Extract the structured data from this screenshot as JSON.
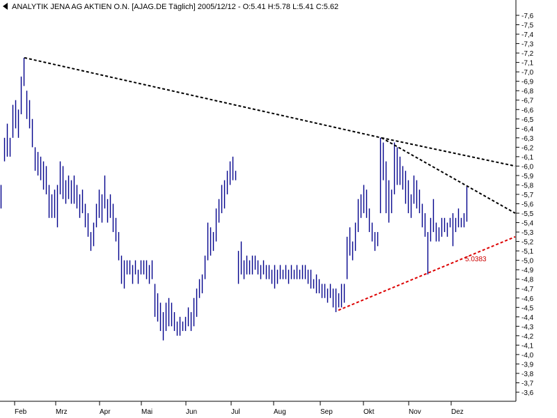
{
  "chart_data": {
    "type": "ohlc",
    "title": "ANALYTIK JENA AG AKTIEN O.N. [AJAG.DE  Täglich] 2005/12/12 - O:5.41 H:5.78 L:5.41 C:5.62",
    "xlabel": "",
    "ylabel": "",
    "ylim": [
      3.6,
      7.6
    ],
    "y_ticks": [
      "7,6",
      "7,5",
      "7,4",
      "7,3",
      "7,2",
      "7,1",
      "7,0",
      "6,9",
      "6,8",
      "6,7",
      "6,6",
      "6,5",
      "6,4",
      "6,3",
      "6,2",
      "6,1",
      "6,0",
      "5,9",
      "5,8",
      "5,7",
      "5,6",
      "5,5",
      "5,4",
      "5,3",
      "5,2",
      "5,1",
      "5,0",
      "4,9",
      "4,8",
      "4,7",
      "4,6",
      "4,5",
      "4,4",
      "4,3",
      "4,2",
      "4,1",
      "4,0",
      "3,9",
      "3,8",
      "3,7",
      "3,6"
    ],
    "month_labels": [
      "Feb",
      "Mrz",
      "Apr",
      "Mai",
      "Jun",
      "Jul",
      "Aug",
      "Sep",
      "Okt",
      "Nov",
      "Dez"
    ],
    "grid": false,
    "colors": {
      "bars": "#00008b",
      "trend": "#000000",
      "support": "#dd0000",
      "annotation": "#cc0000"
    },
    "bars": [
      {
        "x": 1,
        "h": 5.8,
        "l": 5.55
      },
      {
        "x": 6,
        "h": 6.3,
        "l": 6.05
      },
      {
        "x": 10,
        "h": 6.45,
        "l": 6.1
      },
      {
        "x": 14,
        "h": 6.3,
        "l": 6.1
      },
      {
        "x": 18,
        "h": 6.65,
        "l": 6.3
      },
      {
        "x": 22,
        "h": 6.7,
        "l": 6.4
      },
      {
        "x": 26,
        "h": 6.6,
        "l": 6.3
      },
      {
        "x": 30,
        "h": 6.95,
        "l": 6.55
      },
      {
        "x": 34,
        "h": 7.15,
        "l": 6.85
      },
      {
        "x": 38,
        "h": 6.8,
        "l": 6.5
      },
      {
        "x": 42,
        "h": 6.7,
        "l": 6.4
      },
      {
        "x": 46,
        "h": 6.5,
        "l": 6.2
      },
      {
        "x": 50,
        "h": 6.2,
        "l": 5.95
      },
      {
        "x": 54,
        "h": 6.15,
        "l": 5.9
      },
      {
        "x": 58,
        "h": 6.1,
        "l": 5.85
      },
      {
        "x": 62,
        "h": 6.05,
        "l": 5.75
      },
      {
        "x": 66,
        "h": 6.0,
        "l": 5.7
      },
      {
        "x": 70,
        "h": 5.8,
        "l": 5.45
      },
      {
        "x": 74,
        "h": 5.7,
        "l": 5.45
      },
      {
        "x": 78,
        "h": 5.75,
        "l": 5.45
      },
      {
        "x": 82,
        "h": 5.8,
        "l": 5.35
      },
      {
        "x": 86,
        "h": 6.05,
        "l": 5.7
      },
      {
        "x": 90,
        "h": 6.0,
        "l": 5.65
      },
      {
        "x": 94,
        "h": 5.85,
        "l": 5.6
      },
      {
        "x": 98,
        "h": 5.9,
        "l": 5.65
      },
      {
        "x": 102,
        "h": 5.85,
        "l": 5.6
      },
      {
        "x": 106,
        "h": 5.9,
        "l": 5.6
      },
      {
        "x": 110,
        "h": 5.8,
        "l": 5.55
      },
      {
        "x": 114,
        "h": 5.7,
        "l": 5.45
      },
      {
        "x": 118,
        "h": 5.75,
        "l": 5.5
      },
      {
        "x": 122,
        "h": 5.6,
        "l": 5.35
      },
      {
        "x": 126,
        "h": 5.5,
        "l": 5.25
      },
      {
        "x": 130,
        "h": 5.3,
        "l": 5.1
      },
      {
        "x": 134,
        "h": 5.4,
        "l": 5.15
      },
      {
        "x": 138,
        "h": 5.6,
        "l": 5.35
      },
      {
        "x": 142,
        "h": 5.75,
        "l": 5.45
      },
      {
        "x": 146,
        "h": 5.7,
        "l": 5.4
      },
      {
        "x": 150,
        "h": 5.9,
        "l": 5.55
      },
      {
        "x": 154,
        "h": 5.65,
        "l": 5.4
      },
      {
        "x": 158,
        "h": 5.7,
        "l": 5.45
      },
      {
        "x": 162,
        "h": 5.6,
        "l": 5.3
      },
      {
        "x": 166,
        "h": 5.45,
        "l": 5.2
      },
      {
        "x": 170,
        "h": 5.3,
        "l": 5.0
      },
      {
        "x": 174,
        "h": 5.05,
        "l": 4.75
      },
      {
        "x": 178,
        "h": 5.0,
        "l": 4.7
      },
      {
        "x": 182,
        "h": 5.0,
        "l": 4.85
      },
      {
        "x": 186,
        "h": 5.0,
        "l": 4.85
      },
      {
        "x": 190,
        "h": 4.95,
        "l": 4.75
      },
      {
        "x": 194,
        "h": 5.0,
        "l": 4.85
      },
      {
        "x": 198,
        "h": 4.9,
        "l": 4.75
      },
      {
        "x": 202,
        "h": 5.0,
        "l": 4.85
      },
      {
        "x": 206,
        "h": 5.0,
        "l": 4.85
      },
      {
        "x": 210,
        "h": 5.0,
        "l": 4.8
      },
      {
        "x": 214,
        "h": 4.95,
        "l": 4.75
      },
      {
        "x": 218,
        "h": 5.0,
        "l": 4.8
      },
      {
        "x": 222,
        "h": 4.75,
        "l": 4.4
      },
      {
        "x": 226,
        "h": 4.65,
        "l": 4.35
      },
      {
        "x": 230,
        "h": 4.55,
        "l": 4.25
      },
      {
        "x": 234,
        "h": 4.45,
        "l": 4.15
      },
      {
        "x": 238,
        "h": 4.55,
        "l": 4.25
      },
      {
        "x": 242,
        "h": 4.6,
        "l": 4.3
      },
      {
        "x": 246,
        "h": 4.55,
        "l": 4.3
      },
      {
        "x": 250,
        "h": 4.45,
        "l": 4.25
      },
      {
        "x": 254,
        "h": 4.35,
        "l": 4.2
      },
      {
        "x": 258,
        "h": 4.4,
        "l": 4.2
      },
      {
        "x": 262,
        "h": 4.35,
        "l": 4.25
      },
      {
        "x": 266,
        "h": 4.4,
        "l": 4.25
      },
      {
        "x": 270,
        "h": 4.5,
        "l": 4.3
      },
      {
        "x": 274,
        "h": 4.45,
        "l": 4.25
      },
      {
        "x": 278,
        "h": 4.6,
        "l": 4.3
      },
      {
        "x": 282,
        "h": 4.7,
        "l": 4.4
      },
      {
        "x": 286,
        "h": 4.8,
        "l": 4.6
      },
      {
        "x": 290,
        "h": 4.85,
        "l": 4.65
      },
      {
        "x": 294,
        "h": 5.05,
        "l": 4.8
      },
      {
        "x": 298,
        "h": 5.4,
        "l": 5.0
      },
      {
        "x": 302,
        "h": 5.35,
        "l": 5.05
      },
      {
        "x": 306,
        "h": 5.3,
        "l": 5.1
      },
      {
        "x": 310,
        "h": 5.55,
        "l": 5.2
      },
      {
        "x": 314,
        "h": 5.65,
        "l": 5.4
      },
      {
        "x": 318,
        "h": 5.8,
        "l": 5.5
      },
      {
        "x": 322,
        "h": 5.85,
        "l": 5.55
      },
      {
        "x": 326,
        "h": 5.95,
        "l": 5.7
      },
      {
        "x": 330,
        "h": 6.05,
        "l": 5.8
      },
      {
        "x": 334,
        "h": 6.1,
        "l": 5.85
      },
      {
        "x": 338,
        "h": 5.95,
        "l": 5.85
      },
      {
        "x": 342,
        "h": 5.1,
        "l": 4.75
      },
      {
        "x": 346,
        "h": 5.2,
        "l": 4.85
      },
      {
        "x": 350,
        "h": 5.0,
        "l": 4.8
      },
      {
        "x": 354,
        "h": 5.05,
        "l": 4.85
      },
      {
        "x": 358,
        "h": 5.0,
        "l": 4.85
      },
      {
        "x": 362,
        "h": 5.05,
        "l": 4.85
      },
      {
        "x": 366,
        "h": 5.05,
        "l": 4.9
      },
      {
        "x": 370,
        "h": 5.0,
        "l": 4.85
      },
      {
        "x": 374,
        "h": 4.95,
        "l": 4.8
      },
      {
        "x": 378,
        "h": 5.0,
        "l": 4.85
      },
      {
        "x": 382,
        "h": 4.95,
        "l": 4.8
      },
      {
        "x": 386,
        "h": 4.95,
        "l": 4.8
      },
      {
        "x": 390,
        "h": 4.9,
        "l": 4.75
      },
      {
        "x": 394,
        "h": 4.95,
        "l": 4.7
      },
      {
        "x": 398,
        "h": 4.9,
        "l": 4.75
      },
      {
        "x": 402,
        "h": 4.95,
        "l": 4.8
      },
      {
        "x": 406,
        "h": 4.9,
        "l": 4.8
      },
      {
        "x": 410,
        "h": 4.95,
        "l": 4.8
      },
      {
        "x": 414,
        "h": 4.9,
        "l": 4.75
      },
      {
        "x": 418,
        "h": 4.95,
        "l": 4.8
      },
      {
        "x": 422,
        "h": 4.9,
        "l": 4.8
      },
      {
        "x": 426,
        "h": 4.95,
        "l": 4.8
      },
      {
        "x": 430,
        "h": 4.9,
        "l": 4.8
      },
      {
        "x": 434,
        "h": 4.95,
        "l": 4.8
      },
      {
        "x": 438,
        "h": 4.95,
        "l": 4.8
      },
      {
        "x": 442,
        "h": 4.9,
        "l": 4.75
      },
      {
        "x": 446,
        "h": 4.9,
        "l": 4.7
      },
      {
        "x": 450,
        "h": 4.8,
        "l": 4.7
      },
      {
        "x": 454,
        "h": 4.85,
        "l": 4.65
      },
      {
        "x": 458,
        "h": 4.8,
        "l": 4.65
      },
      {
        "x": 462,
        "h": 4.75,
        "l": 4.6
      },
      {
        "x": 466,
        "h": 4.75,
        "l": 4.6
      },
      {
        "x": 470,
        "h": 4.7,
        "l": 4.55
      },
      {
        "x": 474,
        "h": 4.75,
        "l": 4.6
      },
      {
        "x": 478,
        "h": 4.7,
        "l": 4.5
      },
      {
        "x": 482,
        "h": 4.7,
        "l": 4.45
      },
      {
        "x": 486,
        "h": 4.65,
        "l": 4.5
      },
      {
        "x": 490,
        "h": 4.75,
        "l": 4.5
      },
      {
        "x": 494,
        "h": 4.75,
        "l": 4.55
      },
      {
        "x": 498,
        "h": 5.25,
        "l": 4.8
      },
      {
        "x": 502,
        "h": 5.35,
        "l": 5.05
      },
      {
        "x": 506,
        "h": 5.2,
        "l": 5.0
      },
      {
        "x": 510,
        "h": 5.4,
        "l": 5.1
      },
      {
        "x": 514,
        "h": 5.65,
        "l": 5.3
      },
      {
        "x": 518,
        "h": 5.7,
        "l": 5.45
      },
      {
        "x": 522,
        "h": 5.8,
        "l": 5.5
      },
      {
        "x": 526,
        "h": 5.75,
        "l": 5.45
      },
      {
        "x": 530,
        "h": 5.55,
        "l": 5.3
      },
      {
        "x": 534,
        "h": 5.4,
        "l": 5.2
      },
      {
        "x": 538,
        "h": 5.3,
        "l": 5.1
      },
      {
        "x": 542,
        "h": 5.3,
        "l": 5.15
      },
      {
        "x": 546,
        "h": 6.3,
        "l": 5.5
      },
      {
        "x": 550,
        "h": 6.25,
        "l": 5.85
      },
      {
        "x": 554,
        "h": 6.05,
        "l": 5.5
      },
      {
        "x": 558,
        "h": 5.85,
        "l": 5.4
      },
      {
        "x": 562,
        "h": 5.75,
        "l": 5.5
      },
      {
        "x": 566,
        "h": 6.25,
        "l": 5.7
      },
      {
        "x": 570,
        "h": 6.2,
        "l": 5.8
      },
      {
        "x": 574,
        "h": 6.1,
        "l": 5.8
      },
      {
        "x": 578,
        "h": 6.0,
        "l": 5.75
      },
      {
        "x": 582,
        "h": 5.95,
        "l": 5.6
      },
      {
        "x": 586,
        "h": 5.85,
        "l": 5.5
      },
      {
        "x": 590,
        "h": 5.7,
        "l": 5.45
      },
      {
        "x": 594,
        "h": 5.9,
        "l": 5.6
      },
      {
        "x": 598,
        "h": 5.85,
        "l": 5.55
      },
      {
        "x": 602,
        "h": 5.75,
        "l": 5.5
      },
      {
        "x": 606,
        "h": 5.6,
        "l": 5.35
      },
      {
        "x": 610,
        "h": 5.5,
        "l": 5.25
      },
      {
        "x": 614,
        "h": 5.3,
        "l": 4.85
      },
      {
        "x": 618,
        "h": 5.45,
        "l": 5.2
      },
      {
        "x": 622,
        "h": 5.65,
        "l": 5.3
      },
      {
        "x": 626,
        "h": 5.4,
        "l": 5.2
      },
      {
        "x": 630,
        "h": 5.35,
        "l": 5.2
      },
      {
        "x": 634,
        "h": 5.45,
        "l": 5.25
      },
      {
        "x": 638,
        "h": 5.45,
        "l": 5.3
      },
      {
        "x": 642,
        "h": 5.4,
        "l": 5.25
      },
      {
        "x": 646,
        "h": 5.45,
        "l": 5.35
      },
      {
        "x": 650,
        "h": 5.5,
        "l": 5.15
      },
      {
        "x": 654,
        "h": 5.45,
        "l": 5.3
      },
      {
        "x": 658,
        "h": 5.55,
        "l": 5.35
      },
      {
        "x": 662,
        "h": 5.45,
        "l": 5.35
      },
      {
        "x": 666,
        "h": 5.5,
        "l": 5.35
      },
      {
        "x": 670,
        "h": 5.78,
        "l": 5.41
      }
    ],
    "trendlines": [
      {
        "from": [
          35,
          7.15
        ],
        "to": [
          548,
          6.3
        ],
        "style": "dashed",
        "color": "#000000"
      },
      {
        "from": [
          548,
          6.3
        ],
        "to": [
          740,
          6.0
        ],
        "style": "dashed",
        "color": "#000000"
      },
      {
        "from": [
          548,
          6.3
        ],
        "to": [
          740,
          5.5
        ],
        "style": "dashed",
        "color": "#000000"
      },
      {
        "from": [
          486,
          4.47
        ],
        "to": [
          740,
          5.25
        ],
        "style": "dashed",
        "color": "#dd0000"
      }
    ],
    "annotation": {
      "text": "5.0383",
      "x": 668,
      "y": 4.99
    }
  }
}
